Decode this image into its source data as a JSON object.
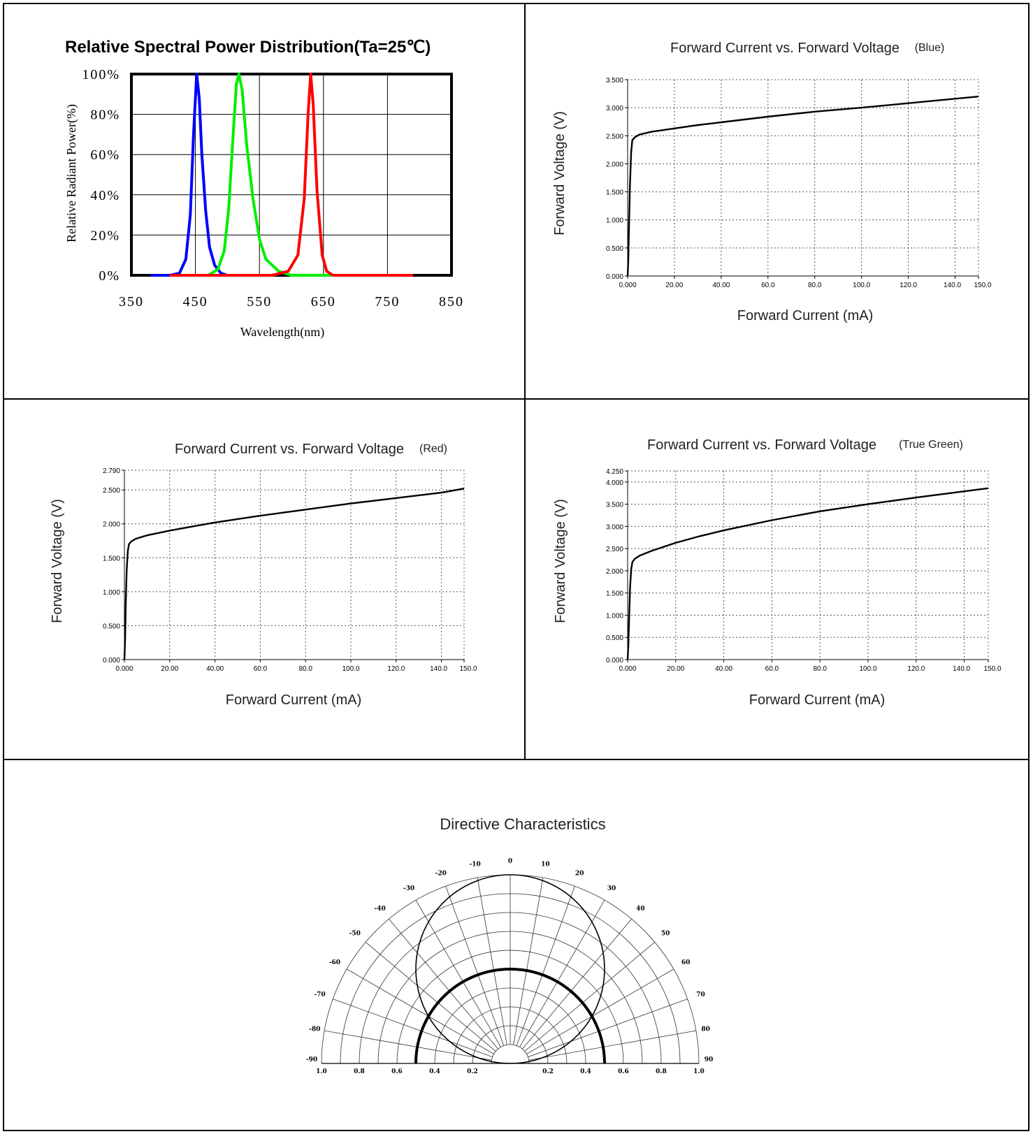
{
  "chart_data": [
    {
      "id": "spd",
      "type": "line",
      "title": "Relative Spectral Power Distribution(Ta=25℃)",
      "xlabel": "Wavelength(nm)",
      "ylabel": "Relative Radiant Power(%)",
      "xlim": [
        350,
        850
      ],
      "ylim": [
        0,
        100
      ],
      "x_ticks": [
        "350",
        "450",
        "550",
        "650",
        "750",
        "850"
      ],
      "y_ticks": [
        "0%",
        "20%",
        "40%",
        "60%",
        "80%",
        "100%"
      ],
      "grid": true,
      "series": [
        {
          "color": "#0000ff",
          "x": [
            380,
            410,
            425,
            435,
            442,
            447,
            452,
            456,
            460,
            466,
            472,
            480,
            490,
            500,
            520
          ],
          "y": [
            0,
            0,
            1,
            8,
            30,
            70,
            100,
            88,
            60,
            32,
            14,
            5,
            1,
            0,
            0
          ]
        },
        {
          "color": "#00ee00",
          "x": [
            420,
            470,
            485,
            495,
            502,
            509,
            514,
            518,
            523,
            530,
            540,
            550,
            560,
            580,
            600,
            700
          ],
          "y": [
            0,
            0,
            3,
            12,
            33,
            70,
            95,
            100,
            92,
            65,
            38,
            18,
            8,
            2,
            0,
            0
          ]
        },
        {
          "color": "#ff0000",
          "x": [
            410,
            520,
            570,
            595,
            610,
            620,
            626,
            630,
            634,
            640,
            648,
            655,
            665,
            700,
            790
          ],
          "y": [
            0,
            0,
            0,
            2,
            10,
            38,
            80,
            100,
            85,
            42,
            10,
            2,
            0,
            0,
            0
          ]
        }
      ]
    },
    {
      "id": "iv_blue",
      "type": "line",
      "title": "Forward Current vs. Forward Voltage",
      "title_tag": "(Blue)",
      "xlabel": "Forward Current (mA)",
      "ylabel": "Forward Voltage (V)",
      "xlim": [
        0,
        150
      ],
      "ylim": [
        0,
        3.5
      ],
      "x_ticks": [
        {
          "v": 0,
          "t": "0.000"
        },
        {
          "v": 20,
          "t": "20.00"
        },
        {
          "v": 40,
          "t": "40.00"
        },
        {
          "v": 60,
          "t": "60.0"
        },
        {
          "v": 80,
          "t": "80.0"
        },
        {
          "v": 100,
          "t": "100.0"
        },
        {
          "v": 120,
          "t": "120.0"
        },
        {
          "v": 140,
          "t": "140.0"
        },
        {
          "v": 150,
          "t": "150.0"
        }
      ],
      "y_ticks": [
        {
          "v": 0,
          "t": "0.000"
        },
        {
          "v": 0.5,
          "t": "0.500"
        },
        {
          "v": 1,
          "t": "1.000"
        },
        {
          "v": 1.5,
          "t": "1.500"
        },
        {
          "v": 2,
          "t": "2.000"
        },
        {
          "v": 2.5,
          "t": "2.500"
        },
        {
          "v": 3,
          "t": "3.000"
        },
        {
          "v": 3.5,
          "t": "3.500"
        }
      ],
      "grid": true,
      "series": [
        {
          "color": "#000000",
          "x": [
            0,
            0.3,
            0.6,
            1.0,
            1.5,
            2,
            3,
            5,
            10,
            20,
            30,
            40,
            60,
            80,
            100,
            120,
            140,
            150
          ],
          "y": [
            0,
            0.3,
            0.9,
            1.6,
            2.2,
            2.42,
            2.47,
            2.52,
            2.57,
            2.63,
            2.69,
            2.74,
            2.84,
            2.93,
            3.0,
            3.08,
            3.16,
            3.2
          ]
        }
      ]
    },
    {
      "id": "iv_red",
      "type": "line",
      "title": "Forward Current vs. Forward Voltage",
      "title_tag": "(Red)",
      "xlabel": "Forward Current (mA)",
      "ylabel": "Forward Voltage (V)",
      "xlim": [
        0,
        150
      ],
      "ylim": [
        0,
        2.79
      ],
      "x_ticks": [
        {
          "v": 0,
          "t": "0.000"
        },
        {
          "v": 20,
          "t": "20.00"
        },
        {
          "v": 40,
          "t": "40.00"
        },
        {
          "v": 60,
          "t": "60.0"
        },
        {
          "v": 80,
          "t": "80.0"
        },
        {
          "v": 100,
          "t": "100.0"
        },
        {
          "v": 120,
          "t": "120.0"
        },
        {
          "v": 140,
          "t": "140.0"
        },
        {
          "v": 150,
          "t": "150.0"
        }
      ],
      "y_ticks": [
        {
          "v": 0,
          "t": "0.000"
        },
        {
          "v": 0.5,
          "t": "0.500"
        },
        {
          "v": 1,
          "t": "1.000"
        },
        {
          "v": 1.5,
          "t": "1.500"
        },
        {
          "v": 2,
          "t": "2.000"
        },
        {
          "v": 2.5,
          "t": "2.500"
        },
        {
          "v": 2.79,
          "t": "2.790"
        }
      ],
      "grid": true,
      "series": [
        {
          "color": "#000000",
          "x": [
            0,
            0.3,
            0.6,
            1.0,
            1.5,
            2,
            3,
            5,
            10,
            20,
            30,
            40,
            60,
            80,
            100,
            120,
            140,
            150
          ],
          "y": [
            0,
            0.3,
            0.8,
            1.3,
            1.6,
            1.7,
            1.74,
            1.78,
            1.83,
            1.9,
            1.96,
            2.02,
            2.12,
            2.21,
            2.3,
            2.38,
            2.46,
            2.52
          ]
        }
      ]
    },
    {
      "id": "iv_green",
      "type": "line",
      "title": "Forward Current vs. Forward Voltage",
      "title_tag": "(True Green)",
      "xlabel": "Forward Current (mA)",
      "ylabel": "Forward Voltage (V)",
      "xlim": [
        0,
        150
      ],
      "ylim": [
        0,
        4.25
      ],
      "x_ticks": [
        {
          "v": 0,
          "t": "0.000"
        },
        {
          "v": 20,
          "t": "20.00"
        },
        {
          "v": 40,
          "t": "40.00"
        },
        {
          "v": 60,
          "t": "60.0"
        },
        {
          "v": 80,
          "t": "80.0"
        },
        {
          "v": 100,
          "t": "100.0"
        },
        {
          "v": 120,
          "t": "120.0"
        },
        {
          "v": 140,
          "t": "140.0"
        },
        {
          "v": 150,
          "t": "150.0"
        }
      ],
      "y_ticks": [
        {
          "v": 0,
          "t": "0.000"
        },
        {
          "v": 0.5,
          "t": "0.500"
        },
        {
          "v": 1,
          "t": "1.000"
        },
        {
          "v": 1.5,
          "t": "1.500"
        },
        {
          "v": 2,
          "t": "2.000"
        },
        {
          "v": 2.5,
          "t": "2.500"
        },
        {
          "v": 3,
          "t": "3.000"
        },
        {
          "v": 3.5,
          "t": "3.500"
        },
        {
          "v": 4,
          "t": "4.000"
        },
        {
          "v": 4.25,
          "t": "4.250"
        }
      ],
      "grid": true,
      "series": [
        {
          "color": "#000000",
          "x": [
            0,
            0.3,
            0.6,
            1.0,
            1.5,
            2,
            3,
            5,
            10,
            20,
            30,
            40,
            60,
            80,
            100,
            120,
            140,
            150
          ],
          "y": [
            0,
            0.3,
            0.9,
            1.6,
            2.05,
            2.2,
            2.27,
            2.34,
            2.45,
            2.63,
            2.78,
            2.91,
            3.14,
            3.34,
            3.5,
            3.65,
            3.79,
            3.86
          ]
        }
      ]
    },
    {
      "id": "polar",
      "type": "polar",
      "title": "Directive Characteristics",
      "theta_range": [
        -90,
        90
      ],
      "r_range": [
        0,
        1
      ],
      "angle_labels": [
        "-90",
        "-80",
        "-70",
        "-60",
        "-50",
        "-40",
        "-30",
        "-20",
        "-10",
        "0",
        "10",
        "20",
        "30",
        "40",
        "50",
        "60",
        "70",
        "80",
        "90"
      ],
      "radius_labels": [
        "1.0",
        "0.8",
        "0.6",
        "0.4",
        "0.2",
        "0.2",
        "0.4",
        "0.6",
        "0.8",
        "1.0"
      ],
      "grid": true,
      "series": [
        {
          "color": "#000000",
          "shape": "circle",
          "diameter_relative": 1.0
        },
        {
          "color": "#000000",
          "shape": "semicircle",
          "radius_relative": 0.5
        }
      ]
    }
  ]
}
